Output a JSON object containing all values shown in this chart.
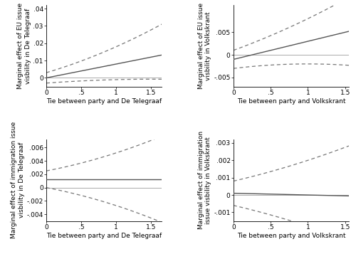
{
  "subplots": [
    {
      "ylabel": "Marginal effect of EU issue\nvisbility in De Telegraaf",
      "xlabel": "Tie between party and De Telegraaf",
      "xlim": [
        0,
        1.65
      ],
      "ylim": [
        -0.005,
        0.042
      ],
      "xticks": [
        0,
        0.5,
        1.0,
        1.5
      ],
      "xticklabels": [
        "0",
        ".5",
        "1",
        "1.5"
      ],
      "yticks": [
        0.0,
        0.01,
        0.02,
        0.03,
        0.04
      ],
      "yticklabels": [
        "0",
        ".01",
        ".02",
        ".03",
        ".04"
      ],
      "mean_coef": [
        0.0,
        0.008,
        0.0
      ],
      "ci_upper_coef": [
        0.003,
        0.012,
        0.003
      ],
      "ci_lower_coef": [
        -0.003,
        0.003,
        -0.001
      ]
    },
    {
      "ylabel": "Marginal effect of EU issue\nvisbility in Volkskrant",
      "xlabel": "Tie between party and Volkskrant",
      "xlim": [
        0,
        1.55
      ],
      "ylim": [
        -0.007,
        0.011
      ],
      "xticks": [
        0,
        0.5,
        1.0,
        1.5
      ],
      "xticklabels": [
        "0",
        ".5",
        "1",
        "1.5"
      ],
      "yticks": [
        -0.005,
        0.0,
        0.005
      ],
      "yticklabels": [
        "-.005",
        "0",
        ".005"
      ],
      "mean_coef": [
        -0.001,
        0.004,
        0.0
      ],
      "ci_upper_coef": [
        0.001,
        0.006,
        0.001
      ],
      "ci_lower_coef": [
        -0.003,
        0.002,
        -0.001
      ]
    },
    {
      "ylabel": "Marginal effect of immigration issue\nvisbility in De Telegraaf",
      "xlabel": "Tie between party and De Telegraaf",
      "xlim": [
        0,
        1.65
      ],
      "ylim": [
        -0.005,
        0.0072
      ],
      "xticks": [
        0,
        0.5,
        1.0,
        1.5
      ],
      "xticklabels": [
        "0",
        ".5",
        "1",
        "1.5"
      ],
      "yticks": [
        -0.004,
        -0.002,
        0.0,
        0.002,
        0.004,
        0.006
      ],
      "yticklabels": [
        "-.004",
        "-.002",
        "0",
        ".002",
        ".004",
        ".006"
      ],
      "mean_coef": [
        0.0012,
        0.0,
        0.0
      ],
      "ci_upper_coef": [
        0.0025,
        0.002,
        0.0007
      ],
      "ci_lower_coef": [
        0.0,
        -0.002,
        -0.0007
      ]
    },
    {
      "ylabel": "Marginal effect of immigration\nissue visbility in Volkskrant",
      "xlabel": "Tie between party and Volkskrant",
      "xlim": [
        0,
        1.55
      ],
      "ylim": [
        -0.0015,
        0.0032
      ],
      "xticks": [
        0,
        0.5,
        1.0,
        1.5
      ],
      "xticklabels": [
        "0",
        ".5",
        "1",
        "1.5"
      ],
      "yticks": [
        -0.001,
        0.0,
        0.001,
        0.002,
        0.003
      ],
      "yticklabels": [
        "-.001",
        "0",
        ".001",
        ".002",
        ".003"
      ],
      "mean_coef": [
        0.0001,
        -0.0001,
        0.0
      ],
      "ci_upper_coef": [
        0.0008,
        0.001,
        0.0002
      ],
      "ci_lower_coef": [
        -0.0006,
        -0.001,
        -0.0002
      ]
    }
  ],
  "line_color": "#555555",
  "ci_color": "#777777",
  "zero_line_color": "#aaaaaa",
  "line_width": 1.0,
  "ci_linewidth": 0.9,
  "label_fontsize": 6.5,
  "tick_fontsize": 6.5
}
